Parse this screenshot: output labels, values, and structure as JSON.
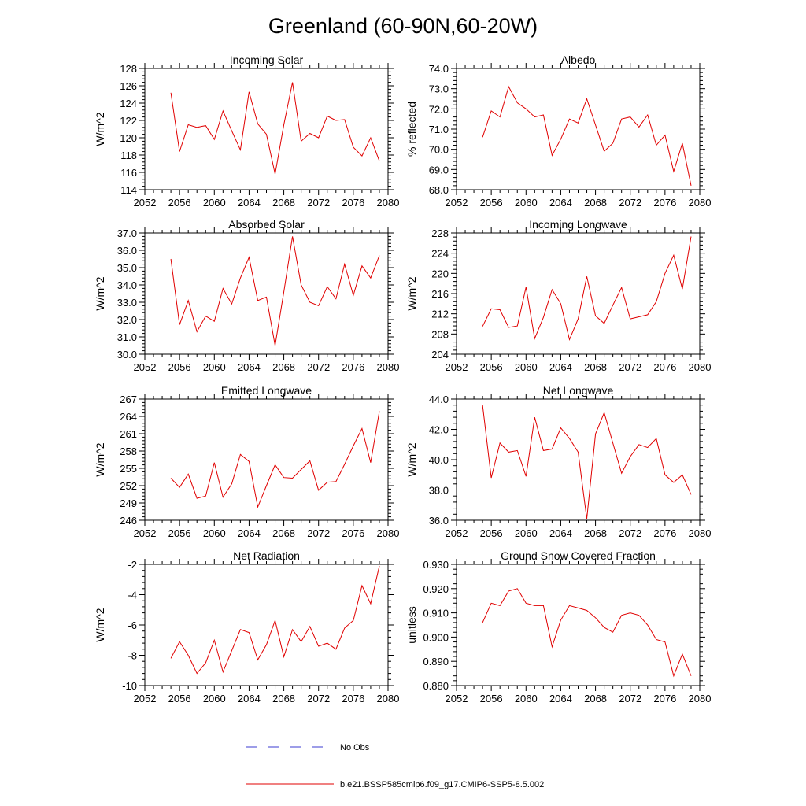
{
  "title": "Greenland (60-90N,60-20W)",
  "legend": {
    "obs_label": "No Obs",
    "model_label": "b.e21.BSSP585cmip6.f09_g17.CMIP6-SSP5-8.5.002",
    "obs_color": "#3b3bd0",
    "model_color": "#e00000"
  },
  "chart_data": [
    {
      "type": "line",
      "title": "Incoming Solar",
      "ylabel": "W/m^2",
      "xlim": [
        2052,
        2080
      ],
      "ylim": [
        114,
        128
      ],
      "xticks": [
        "2052",
        "2056",
        "2060",
        "2064",
        "2068",
        "2072",
        "2076",
        "2080"
      ],
      "yticks": [
        "114",
        "116",
        "118",
        "120",
        "122",
        "124",
        "126",
        "128"
      ],
      "x": [
        2055,
        2056,
        2057,
        2058,
        2059,
        2060,
        2061,
        2062,
        2063,
        2064,
        2065,
        2066,
        2067,
        2068,
        2069,
        2070,
        2071,
        2072,
        2073,
        2074,
        2075,
        2076,
        2077,
        2078,
        2079
      ],
      "series": [
        {
          "values": [
            125.2,
            118.4,
            121.5,
            121.2,
            121.4,
            119.8,
            123.1,
            120.8,
            118.6,
            125.3,
            121.6,
            120.4,
            115.8,
            121.5,
            126.4,
            119.6,
            120.5,
            120.0,
            122.5,
            122.0,
            122.1,
            118.9,
            117.9,
            120.0,
            117.3
          ]
        }
      ]
    },
    {
      "type": "line",
      "title": "Albedo",
      "ylabel": "% reflected",
      "xlim": [
        2052,
        2080
      ],
      "ylim": [
        68.0,
        74.0
      ],
      "xticks": [
        "2052",
        "2056",
        "2060",
        "2064",
        "2068",
        "2072",
        "2076",
        "2080"
      ],
      "yticks": [
        "68.0",
        "69.0",
        "70.0",
        "71.0",
        "72.0",
        "73.0",
        "74.0"
      ],
      "x": [
        2055,
        2056,
        2057,
        2058,
        2059,
        2060,
        2061,
        2062,
        2063,
        2064,
        2065,
        2066,
        2067,
        2068,
        2069,
        2070,
        2071,
        2072,
        2073,
        2074,
        2075,
        2076,
        2077,
        2078,
        2079
      ],
      "series": [
        {
          "values": [
            70.6,
            71.9,
            71.6,
            73.1,
            72.3,
            72.0,
            71.6,
            71.7,
            69.7,
            70.5,
            71.5,
            71.3,
            72.5,
            71.2,
            69.9,
            70.3,
            71.5,
            71.6,
            71.1,
            71.7,
            70.2,
            70.7,
            68.9,
            70.3,
            68.2
          ]
        }
      ]
    },
    {
      "type": "line",
      "title": "Absorbed Solar",
      "ylabel": "W/m^2",
      "xlim": [
        2052,
        2080
      ],
      "ylim": [
        30.0,
        37.0
      ],
      "xticks": [
        "2052",
        "2056",
        "2060",
        "2064",
        "2068",
        "2072",
        "2076",
        "2080"
      ],
      "yticks": [
        "30.0",
        "31.0",
        "32.0",
        "33.0",
        "34.0",
        "35.0",
        "36.0",
        "37.0"
      ],
      "x": [
        2055,
        2056,
        2057,
        2058,
        2059,
        2060,
        2061,
        2062,
        2063,
        2064,
        2065,
        2066,
        2067,
        2068,
        2069,
        2070,
        2071,
        2072,
        2073,
        2074,
        2075,
        2076,
        2077,
        2078,
        2079
      ],
      "series": [
        {
          "values": [
            35.5,
            31.7,
            33.1,
            31.3,
            32.2,
            31.9,
            33.8,
            32.9,
            34.4,
            35.6,
            33.1,
            33.3,
            30.5,
            33.6,
            36.8,
            34.0,
            33.0,
            32.8,
            33.9,
            33.2,
            35.2,
            33.4,
            35.1,
            34.4,
            35.7
          ]
        }
      ]
    },
    {
      "type": "line",
      "title": "Incoming Longwave",
      "ylabel": "W/m^2",
      "xlim": [
        2052,
        2080
      ],
      "ylim": [
        204,
        228
      ],
      "xticks": [
        "2052",
        "2056",
        "2060",
        "2064",
        "2068",
        "2072",
        "2076",
        "2080"
      ],
      "yticks": [
        "204",
        "208",
        "212",
        "216",
        "220",
        "224",
        "228"
      ],
      "x": [
        2055,
        2056,
        2057,
        2058,
        2059,
        2060,
        2061,
        2062,
        2063,
        2064,
        2065,
        2066,
        2067,
        2068,
        2069,
        2070,
        2071,
        2072,
        2073,
        2074,
        2075,
        2076,
        2077,
        2078,
        2079
      ],
      "series": [
        {
          "values": [
            209.5,
            213.0,
            212.8,
            209.3,
            209.6,
            217.3,
            207.1,
            211.3,
            216.8,
            214.0,
            206.9,
            211.0,
            219.4,
            211.6,
            210.1,
            213.7,
            217.2,
            211.0,
            211.4,
            211.8,
            214.4,
            220.0,
            223.6,
            216.9,
            227.3
          ]
        }
      ]
    },
    {
      "type": "line",
      "title": "Emitted Longwave",
      "ylabel": "W/m^2",
      "xlim": [
        2052,
        2080
      ],
      "ylim": [
        246,
        267
      ],
      "xticks": [
        "2052",
        "2056",
        "2060",
        "2064",
        "2068",
        "2072",
        "2076",
        "2080"
      ],
      "yticks": [
        "246",
        "249",
        "252",
        "255",
        "258",
        "261",
        "264",
        "267"
      ],
      "x": [
        2055,
        2056,
        2057,
        2058,
        2059,
        2060,
        2061,
        2062,
        2063,
        2064,
        2065,
        2066,
        2067,
        2068,
        2069,
        2070,
        2071,
        2072,
        2073,
        2074,
        2075,
        2076,
        2077,
        2078,
        2079
      ],
      "series": [
        {
          "values": [
            253.3,
            251.7,
            254.0,
            249.8,
            250.2,
            256.0,
            250.0,
            252.3,
            257.4,
            256.2,
            248.3,
            252.0,
            255.6,
            253.4,
            253.3,
            254.8,
            256.3,
            251.2,
            252.6,
            252.7,
            255.7,
            258.9,
            261.9,
            256.0,
            264.9
          ]
        }
      ]
    },
    {
      "type": "line",
      "title": "Net Longwave",
      "ylabel": "W/m^2",
      "xlim": [
        2052,
        2080
      ],
      "ylim": [
        36.0,
        44.0
      ],
      "xticks": [
        "2052",
        "2056",
        "2060",
        "2064",
        "2068",
        "2072",
        "2076",
        "2080"
      ],
      "yticks": [
        "36.0",
        "38.0",
        "40.0",
        "42.0",
        "44.0"
      ],
      "x": [
        2055,
        2056,
        2057,
        2058,
        2059,
        2060,
        2061,
        2062,
        2063,
        2064,
        2065,
        2066,
        2067,
        2068,
        2069,
        2070,
        2071,
        2072,
        2073,
        2074,
        2075,
        2076,
        2077,
        2078,
        2079
      ],
      "series": [
        {
          "values": [
            43.6,
            38.8,
            41.1,
            40.5,
            40.6,
            38.9,
            42.8,
            40.6,
            40.7,
            42.1,
            41.4,
            40.5,
            36.1,
            41.7,
            43.1,
            41.1,
            39.1,
            40.2,
            41.0,
            40.8,
            41.4,
            39.0,
            38.5,
            39.0,
            37.7
          ]
        }
      ]
    },
    {
      "type": "line",
      "title": "Net Radiation",
      "ylabel": "W/m^2",
      "xlim": [
        2052,
        2080
      ],
      "ylim": [
        -10,
        -2
      ],
      "xticks": [
        "2052",
        "2056",
        "2060",
        "2064",
        "2068",
        "2072",
        "2076",
        "2080"
      ],
      "yticks": [
        "-10",
        "-8",
        "-6",
        "-4",
        "-2"
      ],
      "x": [
        2055,
        2056,
        2057,
        2058,
        2059,
        2060,
        2061,
        2062,
        2063,
        2064,
        2065,
        2066,
        2067,
        2068,
        2069,
        2070,
        2071,
        2072,
        2073,
        2074,
        2075,
        2076,
        2077,
        2078,
        2079
      ],
      "series": [
        {
          "values": [
            -8.2,
            -7.1,
            -8.0,
            -9.2,
            -8.5,
            -7.0,
            -9.1,
            -7.7,
            -6.3,
            -6.5,
            -8.3,
            -7.3,
            -5.7,
            -8.1,
            -6.3,
            -7.1,
            -6.1,
            -7.4,
            -7.2,
            -7.6,
            -6.2,
            -5.7,
            -3.4,
            -4.6,
            -2.1
          ]
        }
      ]
    },
    {
      "type": "line",
      "title": "Ground Snow Covered Fraction",
      "ylabel": "unitless",
      "xlim": [
        2052,
        2080
      ],
      "ylim": [
        0.88,
        0.93
      ],
      "xticks": [
        "2052",
        "2056",
        "2060",
        "2064",
        "2068",
        "2072",
        "2076",
        "2080"
      ],
      "yticks": [
        "0.880",
        "0.890",
        "0.900",
        "0.910",
        "0.920",
        "0.930"
      ],
      "x": [
        2055,
        2056,
        2057,
        2058,
        2059,
        2060,
        2061,
        2062,
        2063,
        2064,
        2065,
        2066,
        2067,
        2068,
        2069,
        2070,
        2071,
        2072,
        2073,
        2074,
        2075,
        2076,
        2077,
        2078,
        2079
      ],
      "series": [
        {
          "values": [
            0.906,
            0.914,
            0.913,
            0.919,
            0.92,
            0.914,
            0.913,
            0.913,
            0.896,
            0.907,
            0.913,
            0.912,
            0.911,
            0.908,
            0.904,
            0.902,
            0.909,
            0.91,
            0.909,
            0.905,
            0.899,
            0.898,
            0.884,
            0.893,
            0.884
          ]
        }
      ]
    }
  ]
}
